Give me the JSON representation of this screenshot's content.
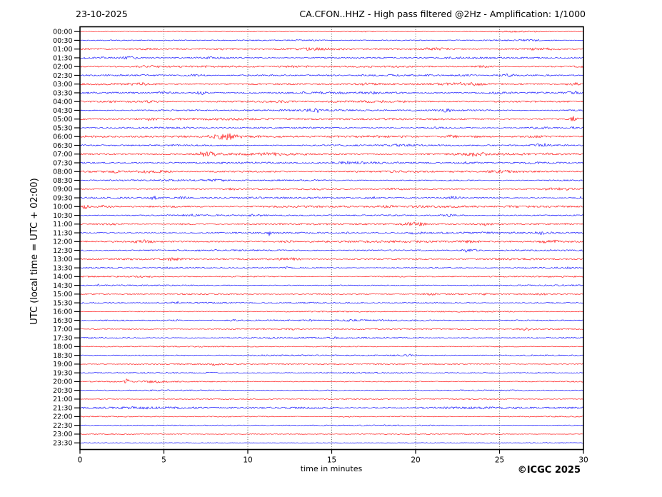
{
  "header": {
    "date": "23-10-2025",
    "title": "CA.CFON..HHZ - High pass filtered @2Hz - Amplification: 1/1000"
  },
  "footer": {
    "copyright": "©ICGC 2025"
  },
  "chart_data": {
    "type": "line",
    "subtype": "helicorder-seismogram",
    "station": "CA.CFON..HHZ",
    "date": "23-10-2025",
    "filter": "High pass filtered @2Hz",
    "amplification": "1/1000",
    "xlabel": "time in minutes",
    "ylabel": "UTC (local time = UTC + 02:00)",
    "minutes_per_line": 30,
    "x_range_minutes": [
      0,
      30
    ],
    "x_ticks": [
      0,
      5,
      10,
      15,
      20,
      25,
      30
    ],
    "grid": {
      "vertical_dotted_every_min": 5,
      "color": "#444444",
      "style": "dotted"
    },
    "axis_color": "#000000",
    "background": "#ffffff",
    "trace_colors": {
      "hour_line": "#ff0000",
      "half_hour_line": "#0000ff"
    },
    "events_format": "[minute, amplitude_px, width_minutes] — visually estimated noise bursts/events",
    "traces": [
      {
        "time": "00:00",
        "color": "#ff0000",
        "noise": 0.4,
        "events": [
          [
            17,
            0.4,
            3
          ],
          [
            26,
            0.4,
            2
          ]
        ]
      },
      {
        "time": "00:30",
        "color": "#0000ff",
        "noise": 0.55,
        "events": [
          [
            13.5,
            0.5,
            2
          ],
          [
            27,
            0.6,
            1.5
          ]
        ]
      },
      {
        "time": "01:00",
        "color": "#ff0000",
        "noise": 0.9,
        "events": [
          [
            4,
            0.7,
            1.2
          ],
          [
            14,
            0.6,
            2
          ],
          [
            21,
            0.8,
            1.5
          ],
          [
            27.5,
            0.7,
            2
          ]
        ]
      },
      {
        "time": "01:30",
        "color": "#0000ff",
        "noise": 0.9,
        "events": [
          [
            3,
            0.8,
            1.5
          ],
          [
            8,
            0.6,
            1
          ],
          [
            22,
            0.6,
            1
          ]
        ]
      },
      {
        "time": "02:00",
        "color": "#ff0000",
        "noise": 0.9,
        "events": [
          [
            4,
            0.9,
            1
          ],
          [
            13,
            0.6,
            1.5
          ],
          [
            24.2,
            0.9,
            1
          ],
          [
            29.7,
            0.9,
            0.5
          ]
        ]
      },
      {
        "time": "02:30",
        "color": "#0000ff",
        "noise": 0.9,
        "events": [
          [
            6.8,
            0.9,
            1
          ],
          [
            22.8,
            0.9,
            0.6
          ],
          [
            25.5,
            1.1,
            0.8
          ]
        ]
      },
      {
        "time": "03:00",
        "color": "#ff0000",
        "noise": 1.0,
        "events": [
          [
            3.5,
            1.1,
            1
          ],
          [
            17,
            0.8,
            1.5
          ],
          [
            23,
            1.0,
            2
          ],
          [
            29.5,
            0.9,
            0.7
          ]
        ]
      },
      {
        "time": "03:30",
        "color": "#0000ff",
        "noise": 1.0,
        "events": [
          [
            5,
            0.9,
            0.8
          ],
          [
            7.3,
            1.5,
            0.7
          ],
          [
            17.5,
            0.9,
            0.6
          ],
          [
            25,
            1.0,
            0.9
          ],
          [
            29.4,
            1.2,
            0.8
          ]
        ]
      },
      {
        "time": "04:00",
        "color": "#ff0000",
        "noise": 1.0,
        "events": [
          [
            4,
            1.0,
            1
          ],
          [
            12,
            0.7,
            1
          ]
        ]
      },
      {
        "time": "04:30",
        "color": "#0000ff",
        "noise": 0.9,
        "events": [
          [
            14,
            2.1,
            0.6
          ],
          [
            21.8,
            1.9,
            0.5
          ]
        ]
      },
      {
        "time": "05:00",
        "color": "#ff0000",
        "noise": 1.1,
        "events": [
          [
            4,
            0.9,
            1
          ],
          [
            29.4,
            2.4,
            0.5
          ]
        ]
      },
      {
        "time": "05:30",
        "color": "#0000ff",
        "noise": 0.8,
        "events": [
          [
            21,
            0.7,
            1
          ],
          [
            27.3,
            1.0,
            1
          ],
          [
            29.3,
            0.9,
            0.3
          ]
        ]
      },
      {
        "time": "06:00",
        "color": "#ff0000",
        "noise": 1.1,
        "events": [
          [
            8.7,
            2.4,
            1.1
          ],
          [
            22.2,
            1.4,
            0.7
          ],
          [
            23.8,
            1.1,
            0.7
          ],
          [
            27.3,
            0.8,
            0.5
          ]
        ]
      },
      {
        "time": "06:30",
        "color": "#0000ff",
        "noise": 0.9,
        "events": [
          [
            19,
            0.8,
            1
          ],
          [
            27.5,
            1.9,
            0.6
          ]
        ]
      },
      {
        "time": "07:00",
        "color": "#ff0000",
        "noise": 1.2,
        "events": [
          [
            7.6,
            2.3,
            0.9
          ],
          [
            11.5,
            0.9,
            1
          ],
          [
            23.5,
            1.5,
            1.1
          ]
        ]
      },
      {
        "time": "07:30",
        "color": "#0000ff",
        "noise": 1.0,
        "events": [
          [
            16,
            0.8,
            1.5
          ],
          [
            23,
            0.7,
            1
          ],
          [
            27,
            0.8,
            1
          ]
        ]
      },
      {
        "time": "08:00",
        "color": "#ff0000",
        "noise": 1.0,
        "events": [
          [
            1.9,
            2.1,
            0.35
          ],
          [
            4.5,
            1.1,
            1.5
          ],
          [
            25,
            0.9,
            1
          ]
        ]
      },
      {
        "time": "08:30",
        "color": "#0000ff",
        "noise": 0.8,
        "events": [
          [
            8.2,
            1.1,
            1.2
          ]
        ]
      },
      {
        "time": "09:00",
        "color": "#ff0000",
        "noise": 0.8,
        "events": [
          [
            9.1,
            0.9,
            0.8
          ],
          [
            18.8,
            1.0,
            1
          ],
          [
            28.5,
            0.8,
            1.5
          ]
        ]
      },
      {
        "time": "09:30",
        "color": "#0000ff",
        "noise": 0.9,
        "events": [
          [
            4.4,
            1.3,
            0.5
          ],
          [
            6.2,
            0.8,
            0.6
          ],
          [
            17.4,
            1.0,
            0.6
          ],
          [
            22.3,
            1.5,
            0.7
          ],
          [
            29.8,
            1.3,
            0.2
          ]
        ]
      },
      {
        "time": "10:00",
        "color": "#ff0000",
        "noise": 1.1,
        "events": [
          [
            0.3,
            2.4,
            0.5
          ],
          [
            1.5,
            1.1,
            0.8
          ],
          [
            18.3,
            0.9,
            0.7
          ],
          [
            26,
            0.8,
            1
          ]
        ]
      },
      {
        "time": "10:30",
        "color": "#0000ff",
        "noise": 0.8,
        "events": [
          [
            6.5,
            0.9,
            0.7
          ],
          [
            10.4,
            0.8,
            0.6
          ],
          [
            22,
            1.4,
            0.6
          ]
        ]
      },
      {
        "time": "11:00",
        "color": "#ff0000",
        "noise": 0.9,
        "events": [
          [
            1.8,
            0.9,
            0.7
          ],
          [
            6.4,
            0.9,
            0.7
          ],
          [
            20,
            1.6,
            1
          ],
          [
            24.1,
            1.0,
            0.7
          ]
        ]
      },
      {
        "time": "11:30",
        "color": "#0000ff",
        "noise": 0.9,
        "events": [
          [
            11.3,
            4.5,
            0.12
          ],
          [
            15.9,
            1.0,
            0.2
          ],
          [
            20,
            0.9,
            0.8
          ],
          [
            27.5,
            0.8,
            1
          ]
        ]
      },
      {
        "time": "12:00",
        "color": "#ff0000",
        "noise": 1.0,
        "events": [
          [
            3.7,
            1.3,
            0.9
          ],
          [
            12.3,
            0.9,
            0.7
          ],
          [
            23.3,
            1.0,
            0.9
          ],
          [
            28,
            1.1,
            1.5
          ]
        ]
      },
      {
        "time": "12:30",
        "color": "#0000ff",
        "noise": 0.8,
        "events": [
          [
            23.2,
            2.1,
            0.6
          ]
        ]
      },
      {
        "time": "13:00",
        "color": "#ff0000",
        "noise": 0.9,
        "events": [
          [
            5.5,
            1.2,
            0.9
          ],
          [
            12.5,
            1.1,
            1.2
          ]
        ]
      },
      {
        "time": "13:30",
        "color": "#0000ff",
        "noise": 0.7,
        "events": [
          [
            5.2,
            0.7,
            0.4
          ],
          [
            12.3,
            0.8,
            0.3
          ],
          [
            29,
            0.6,
            1
          ]
        ]
      },
      {
        "time": "14:00",
        "color": "#ff0000",
        "noise": 0.68,
        "events": [
          [
            3.8,
            0.7,
            0.8
          ]
        ]
      },
      {
        "time": "14:30",
        "color": "#0000ff",
        "noise": 0.6,
        "events": [
          [
            1.1,
            1.3,
            0.15
          ]
        ]
      },
      {
        "time": "15:00",
        "color": "#ff0000",
        "noise": 0.72,
        "events": [
          [
            21,
            0.8,
            0.5
          ],
          [
            24.2,
            0.7,
            0.5
          ],
          [
            27.4,
            0.8,
            0.7
          ]
        ]
      },
      {
        "time": "15:30",
        "color": "#0000ff",
        "noise": 0.65,
        "events": [
          [
            5.7,
            1.1,
            0.4
          ]
        ]
      },
      {
        "time": "16:00",
        "color": "#ff0000",
        "noise": 0.6,
        "events": []
      },
      {
        "time": "16:30",
        "color": "#0000ff",
        "noise": 0.75,
        "events": [
          [
            5.7,
            0.9,
            0.3
          ],
          [
            9.1,
            0.9,
            0.4
          ],
          [
            13.7,
            0.8,
            0.3
          ],
          [
            16.2,
            0.7,
            0.8
          ]
        ]
      },
      {
        "time": "17:00",
        "color": "#ff0000",
        "noise": 0.68,
        "events": [
          [
            12.6,
            0.7,
            0.5
          ],
          [
            26.5,
            1.2,
            0.7
          ]
        ]
      },
      {
        "time": "17:30",
        "color": "#0000ff",
        "noise": 0.68,
        "events": [
          [
            11.5,
            0.9,
            0.4
          ],
          [
            15.3,
            0.7,
            0.4
          ]
        ]
      },
      {
        "time": "18:00",
        "color": "#ff0000",
        "noise": 0.6,
        "events": []
      },
      {
        "time": "18:30",
        "color": "#0000ff",
        "noise": 0.68,
        "events": [
          [
            19.5,
            0.8,
            0.7
          ]
        ]
      },
      {
        "time": "19:00",
        "color": "#ff0000",
        "noise": 0.68,
        "events": [
          [
            8,
            0.8,
            0.7
          ],
          [
            17.5,
            0.6,
            0.5
          ]
        ]
      },
      {
        "time": "19:30",
        "color": "#0000ff",
        "noise": 0.6,
        "events": []
      },
      {
        "time": "20:00",
        "color": "#ff0000",
        "noise": 0.6,
        "events": [
          [
            2.8,
            2.5,
            0.25
          ],
          [
            4.3,
            0.8,
            1.2
          ]
        ]
      },
      {
        "time": "20:30",
        "color": "#0000ff",
        "noise": 0.55,
        "events": []
      },
      {
        "time": "21:00",
        "color": "#ff0000",
        "noise": 0.55,
        "events": []
      },
      {
        "time": "21:30",
        "color": "#0000ff",
        "noise": 1.1,
        "events": []
      },
      {
        "time": "22:00",
        "color": "#ff0000",
        "noise": 0.55,
        "events": [
          [
            16,
            0.6,
            1
          ]
        ]
      },
      {
        "time": "22:30",
        "color": "#0000ff",
        "noise": 0.55,
        "events": []
      },
      {
        "time": "23:00",
        "color": "#ff0000",
        "noise": 0.45,
        "events": []
      },
      {
        "time": "23:30",
        "color": "#0000ff",
        "noise": 0.35,
        "events": []
      }
    ]
  }
}
